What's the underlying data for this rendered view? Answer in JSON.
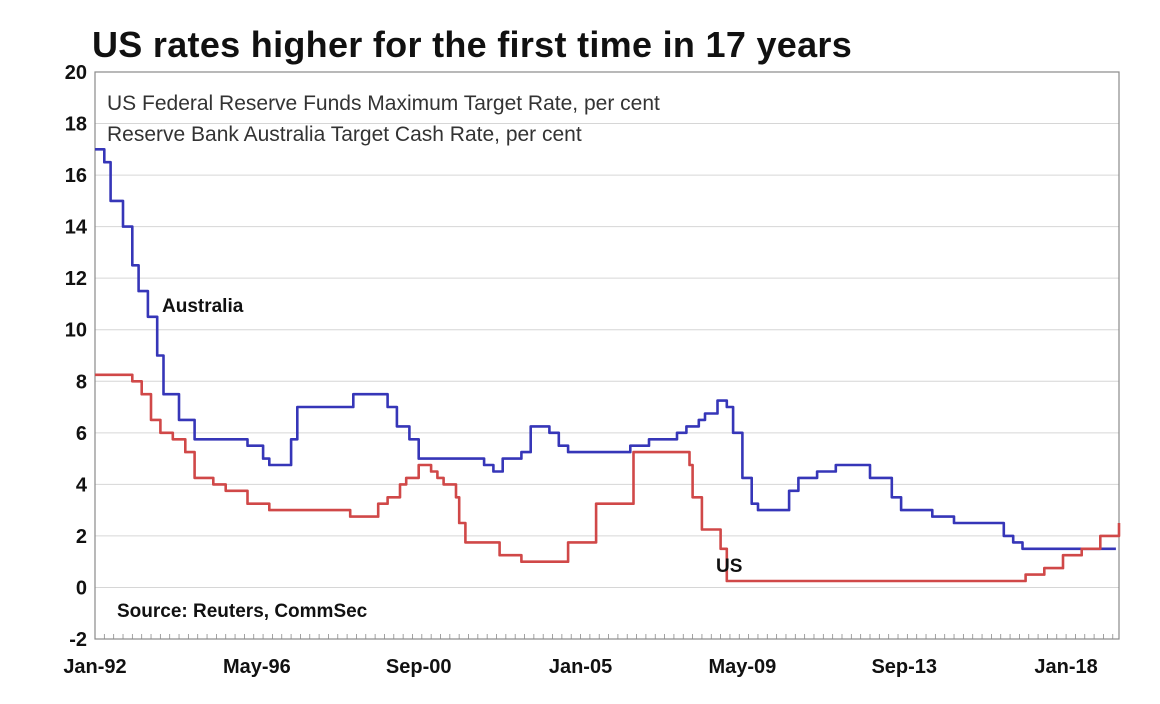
{
  "chart_data": {
    "type": "line",
    "title": "US rates higher for the first time in 17 years",
    "legend": [
      "US Federal Reserve Funds Maximum Target Rate, per cent",
      "Reserve Bank Australia Target Cash Rate, per cent"
    ],
    "legend_placement": "top-left",
    "ylim": [
      -2,
      20
    ],
    "yticks": [
      -2,
      0,
      2,
      4,
      6,
      8,
      10,
      12,
      14,
      16,
      18,
      20
    ],
    "xlim": [
      "1992-01",
      "2019-06"
    ],
    "xticks": [
      "Jan-92",
      "May-96",
      "Sep-00",
      "Jan-05",
      "May-09",
      "Sep-13",
      "Jan-18"
    ],
    "grid": true,
    "annotations": [
      "Australia",
      "US",
      "Source: Reuters, CommSec"
    ],
    "colors": {
      "Australia": "#3636b8",
      "US": "#d04848"
    },
    "series": [
      {
        "name": "Australia",
        "x": [
          "1992-01",
          "1992-04",
          "1992-06",
          "1992-10",
          "1993-01",
          "1993-03",
          "1993-06",
          "1993-09",
          "1993-11",
          "1994-04",
          "1994-09",
          "1994-12",
          "1995-03",
          "1996-02",
          "1996-07",
          "1996-09",
          "1996-12",
          "1997-01",
          "1997-04",
          "1997-06",
          "1998-12",
          "1999-03",
          "1999-11",
          "2000-02",
          "2000-06",
          "2000-09",
          "2000-12",
          "2001-03",
          "2001-05",
          "2001-09",
          "2001-12",
          "2002-04",
          "2002-06",
          "2002-09",
          "2002-12",
          "2003-06",
          "2003-09",
          "2003-12",
          "2004-03",
          "2004-06",
          "2004-09",
          "2005-06",
          "2006-01",
          "2006-05",
          "2006-08",
          "2006-11",
          "2007-01",
          "2007-03",
          "2007-08",
          "2007-11",
          "2008-01",
          "2008-03",
          "2008-05",
          "2008-09",
          "2008-10",
          "2008-12",
          "2009-02",
          "2009-05",
          "2009-08",
          "2009-10",
          "2009-12",
          "2010-03",
          "2010-05",
          "2010-08",
          "2010-11",
          "2011-05",
          "2011-11",
          "2011-12",
          "2012-05",
          "2012-10",
          "2013-05",
          "2013-08",
          "2014-06",
          "2015-01",
          "2015-03",
          "2015-05",
          "2015-09",
          "2016-05",
          "2016-08",
          "2016-11",
          "2019-05"
        ],
        "values": [
          17,
          16.5,
          15,
          14,
          12.5,
          11.5,
          10.5,
          9,
          7.5,
          6.5,
          5.75,
          5.75,
          5.75,
          5.5,
          5,
          4.75,
          4.75,
          4.75,
          5.75,
          7,
          7.5,
          7.5,
          7,
          6.25,
          5.75,
          5,
          5,
          5,
          5,
          5,
          5,
          5,
          4.75,
          4.5,
          5,
          5.25,
          6.25,
          6.25,
          6,
          5.5,
          5.25,
          5.25,
          5.25,
          5.5,
          5.5,
          5.75,
          5.75,
          5.75,
          6,
          6.25,
          6.25,
          6.5,
          6.75,
          7.25,
          7.25,
          7,
          6,
          4.25,
          3.25,
          3,
          3,
          3,
          3,
          3.75,
          4.25,
          4.5,
          4.75,
          4.75,
          4.75,
          4.25,
          3.5,
          3,
          2.75,
          2.5,
          2.5,
          2.5,
          2.5,
          2,
          1.75,
          1.5,
          1.5
        ]
      },
      {
        "name": "US",
        "x": [
          "1992-01",
          "1992-09",
          "1993-01",
          "1993-04",
          "1993-07",
          "1993-10",
          "1994-02",
          "1994-06",
          "1994-09",
          "1995-03",
          "1995-07",
          "1996-02",
          "1996-09",
          "1997-03",
          "1998-09",
          "1998-11",
          "1999-06",
          "1999-08",
          "1999-11",
          "2000-03",
          "2000-05",
          "2000-09",
          "2001-01",
          "2001-02",
          "2001-03",
          "2001-05",
          "2001-09",
          "2001-10",
          "2001-12",
          "2002-11",
          "2003-06",
          "2004-06",
          "2004-09",
          "2005-06",
          "2006-06",
          "2007-09",
          "2007-12",
          "2008-01",
          "2008-04",
          "2008-10",
          "2008-12",
          "2015-12",
          "2016-12",
          "2017-06",
          "2017-12",
          "2018-06",
          "2018-12",
          "2019-06"
        ],
        "values": [
          8.25,
          8.25,
          8,
          7.5,
          6.5,
          6,
          5.75,
          5.25,
          4.25,
          4,
          3.75,
          3.25,
          3,
          3,
          3,
          2.75,
          2.75,
          3.25,
          3.5,
          4,
          4.25,
          4.75,
          4.5,
          4.5,
          4.25,
          4,
          3.5,
          2.5,
          1.75,
          1.25,
          1,
          1,
          1.75,
          3.25,
          5.25,
          5.25,
          4.75,
          3.5,
          2.25,
          1.5,
          0.25,
          0.25,
          0.5,
          0.75,
          1.25,
          1.5,
          2,
          2.5
        ]
      }
    ],
    "source": "Source: Reuters, CommSec"
  }
}
